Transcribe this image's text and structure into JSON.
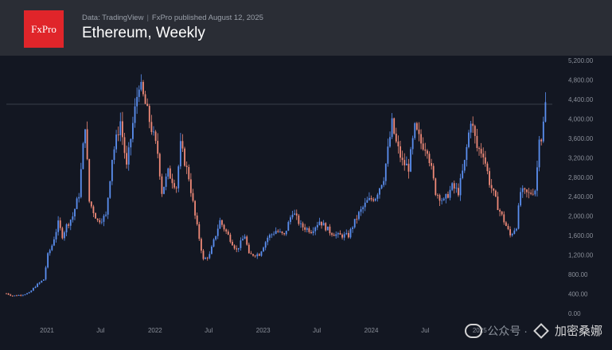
{
  "header": {
    "logo_text": "FxPro",
    "source_left": "Data: TradingView",
    "source_separator": "|",
    "source_right": "FxPro published August 12, 2025",
    "title": "Ethereum, Weekly"
  },
  "watermark": {
    "channel": "公众号 ·",
    "name": "加密桑娜"
  },
  "colors": {
    "up": "#5b8ff0",
    "down": "#f08a78",
    "background": "#131722",
    "header": "#2a2d35",
    "logo": "#e0252a"
  },
  "chart_data": {
    "type": "candlestick",
    "title": "Ethereum, Weekly",
    "x_ticks": [
      {
        "label": "2021",
        "date": "2021-01-01"
      },
      {
        "label": "Jul",
        "date": "2021-07-01"
      },
      {
        "label": "2022",
        "date": "2022-01-01"
      },
      {
        "label": "Jul",
        "date": "2022-07-01"
      },
      {
        "label": "2023",
        "date": "2023-01-01"
      },
      {
        "label": "Jul",
        "date": "2023-07-01"
      },
      {
        "label": "2024",
        "date": "2024-01-01"
      },
      {
        "label": "Jul",
        "date": "2024-07-01"
      },
      {
        "label": "2025",
        "date": "2025-01-01"
      }
    ],
    "y_ticks": [
      "0.00",
      "400.00",
      "800.00",
      "1,200.00",
      "1,600.00",
      "2,000.00",
      "2,400.00",
      "2,800.00",
      "3,200.00",
      "3,600.00",
      "4,000.00",
      "4,400.00",
      "4,800.00",
      "5,200.00"
    ],
    "ylim": [
      0,
      5200
    ],
    "xlim": [
      "2020-08-17",
      "2025-08-18"
    ],
    "reference_line": 4300,
    "close_series": [
      [
        "2020-08-17",
        410
      ],
      [
        "2020-09-07",
        360
      ],
      [
        "2020-10-05",
        380
      ],
      [
        "2020-11-02",
        420
      ],
      [
        "2020-11-23",
        560
      ],
      [
        "2020-12-21",
        700
      ],
      [
        "2021-01-04",
        1200
      ],
      [
        "2021-01-18",
        1400
      ],
      [
        "2021-02-08",
        1850
      ],
      [
        "2021-02-22",
        1600
      ],
      [
        "2021-03-08",
        1800
      ],
      [
        "2021-03-29",
        2000
      ],
      [
        "2021-04-19",
        2450
      ],
      [
        "2021-05-10",
        3900
      ],
      [
        "2021-05-24",
        2300
      ],
      [
        "2021-06-21",
        1900
      ],
      [
        "2021-07-19",
        2000
      ],
      [
        "2021-08-09",
        3200
      ],
      [
        "2021-09-06",
        3950
      ],
      [
        "2021-09-27",
        3000
      ],
      [
        "2021-10-18",
        3900
      ],
      [
        "2021-11-08",
        4750
      ],
      [
        "2021-11-29",
        4300
      ],
      [
        "2021-12-20",
        3800
      ],
      [
        "2022-01-10",
        3300
      ],
      [
        "2022-01-24",
        2500
      ],
      [
        "2022-02-14",
        2900
      ],
      [
        "2022-03-14",
        2600
      ],
      [
        "2022-03-28",
        3450
      ],
      [
        "2022-04-25",
        2800
      ],
      [
        "2022-05-16",
        2000
      ],
      [
        "2022-06-13",
        1100
      ],
      [
        "2022-07-04",
        1200
      ],
      [
        "2022-08-08",
        1900
      ],
      [
        "2022-09-05",
        1600
      ],
      [
        "2022-10-03",
        1300
      ],
      [
        "2022-10-31",
        1600
      ],
      [
        "2022-11-14",
        1200
      ],
      [
        "2022-12-19",
        1220
      ],
      [
        "2023-01-16",
        1560
      ],
      [
        "2023-02-13",
        1700
      ],
      [
        "2023-03-13",
        1600
      ],
      [
        "2023-04-10",
        2100
      ],
      [
        "2023-05-08",
        1800
      ],
      [
        "2023-06-12",
        1700
      ],
      [
        "2023-07-10",
        1900
      ],
      [
        "2023-08-14",
        1680
      ],
      [
        "2023-09-11",
        1600
      ],
      [
        "2023-10-16",
        1600
      ],
      [
        "2023-10-30",
        1800
      ],
      [
        "2023-11-20",
        2050
      ],
      [
        "2023-12-18",
        2300
      ],
      [
        "2024-01-15",
        2400
      ],
      [
        "2024-02-12",
        2800
      ],
      [
        "2024-03-11",
        3900
      ],
      [
        "2024-03-25",
        3500
      ],
      [
        "2024-04-15",
        3100
      ],
      [
        "2024-05-06",
        3000
      ],
      [
        "2024-05-27",
        3800
      ],
      [
        "2024-06-17",
        3500
      ],
      [
        "2024-07-08",
        3400
      ],
      [
        "2024-08-05",
        2500
      ],
      [
        "2024-09-02",
        2300
      ],
      [
        "2024-09-30",
        2600
      ],
      [
        "2024-10-21",
        2500
      ],
      [
        "2024-11-11",
        3100
      ],
      [
        "2024-12-02",
        4000
      ],
      [
        "2024-12-23",
        3400
      ],
      [
        "2025-01-13",
        3300
      ],
      [
        "2025-02-03",
        2700
      ],
      [
        "2025-03-03",
        2200
      ],
      [
        "2025-03-31",
        1800
      ],
      [
        "2025-04-14",
        1600
      ],
      [
        "2025-05-05",
        1800
      ],
      [
        "2025-05-19",
        2500
      ],
      [
        "2025-06-16",
        2450
      ],
      [
        "2025-07-07",
        2550
      ],
      [
        "2025-07-14",
        3000
      ],
      [
        "2025-07-21",
        3700
      ],
      [
        "2025-07-28",
        3600
      ],
      [
        "2025-08-04",
        3900
      ],
      [
        "2025-08-11",
        4300
      ]
    ]
  }
}
